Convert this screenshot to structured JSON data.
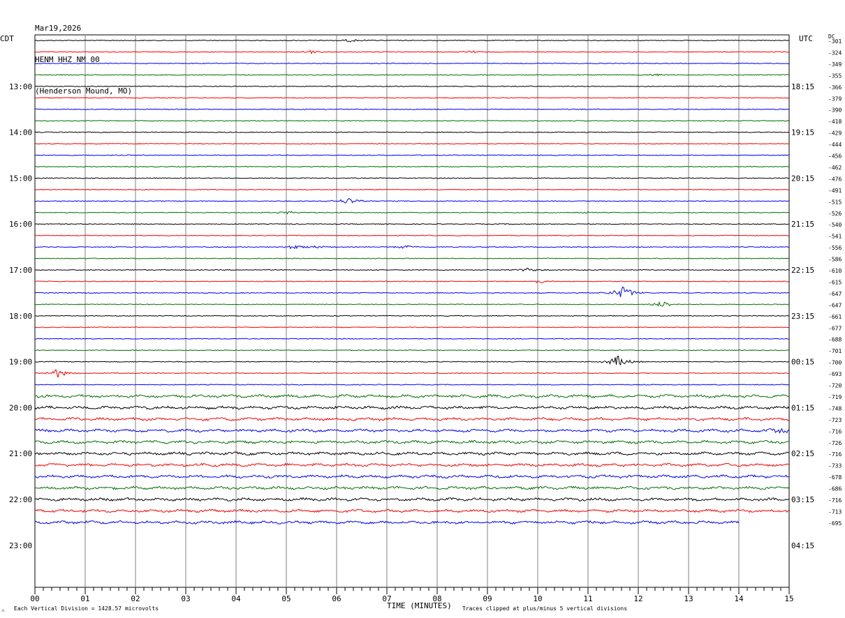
{
  "header": {
    "date": "Mar19,2026",
    "station": "HENM HHZ NM 00",
    "location": "(Henderson Mound, MO)"
  },
  "left_timezone": "CDT",
  "right_timezone": "UTC",
  "dc_label": "DC",
  "footer": {
    "scale_note": "Each Vertical Division = 1428.57 microvolts",
    "clip_note": "Traces clipped at plus/minus 5 vertical divisions",
    "corner_mark": "⚔"
  },
  "colors": {
    "trace_cycle": [
      "#000000",
      "#ff0000",
      "#0000ff",
      "#007000"
    ],
    "grid": "#808080"
  },
  "chart_data": {
    "type": "line",
    "subtype": "helicorder",
    "xlabel": "TIME (MINUTES)",
    "x_ticks": [
      "00",
      "01",
      "02",
      "03",
      "04",
      "05",
      "06",
      "07",
      "08",
      "09",
      "10",
      "11",
      "12",
      "13",
      "14",
      "15"
    ],
    "xlim": [
      0,
      15
    ],
    "rows_per_hour": 4,
    "minutes_per_row": 15,
    "left_hour_labels": [
      "13:00",
      "14:00",
      "15:00",
      "16:00",
      "17:00",
      "18:00",
      "19:00",
      "20:00",
      "21:00",
      "22:00",
      "23:00"
    ],
    "right_hour_labels": [
      "18:15",
      "19:15",
      "20:15",
      "21:15",
      "22:15",
      "23:15",
      "00:15",
      "01:15",
      "02:15",
      "03:15",
      "04:15"
    ],
    "dc_offsets": [
      -301,
      -324,
      -349,
      -355,
      -366,
      -379,
      -390,
      -418,
      -429,
      -444,
      -456,
      -462,
      -476,
      -491,
      -515,
      -526,
      -540,
      -541,
      -556,
      -586,
      -610,
      -615,
      -647,
      -647,
      -661,
      -677,
      -688,
      -701,
      -700,
      -693,
      -720,
      -719,
      -748,
      -723,
      -716,
      -726,
      -716,
      -733,
      -678,
      -686,
      -716,
      -713,
      -695
    ],
    "last_trace_end_minute": 14,
    "events": [
      {
        "row": 0,
        "minute": 6.3,
        "amp": 0.5
      },
      {
        "row": 1,
        "minute": 5.5,
        "amp": 0.6
      },
      {
        "row": 1,
        "minute": 8.7,
        "amp": 0.4
      },
      {
        "row": 3,
        "minute": 12.3,
        "amp": 0.5
      },
      {
        "row": 14,
        "minute": 6.25,
        "amp": 1.2
      },
      {
        "row": 15,
        "minute": 5.0,
        "amp": 0.6
      },
      {
        "row": 15,
        "minute": 11.0,
        "amp": 0.4
      },
      {
        "row": 18,
        "minute": 5.15,
        "amp": 0.8
      },
      {
        "row": 18,
        "minute": 5.6,
        "amp": 0.6
      },
      {
        "row": 18,
        "minute": 7.4,
        "amp": 0.6
      },
      {
        "row": 20,
        "minute": 9.8,
        "amp": 0.7
      },
      {
        "row": 21,
        "minute": 10.1,
        "amp": 0.7
      },
      {
        "row": 22,
        "minute": 11.7,
        "amp": 2.4
      },
      {
        "row": 23,
        "minute": 12.5,
        "amp": 1.2
      },
      {
        "row": 28,
        "minute": 11.6,
        "amp": 2.2
      },
      {
        "row": 29,
        "minute": 0.45,
        "amp": 1.6
      },
      {
        "row": 34,
        "minute": 14.8,
        "amp": 0.9
      }
    ]
  }
}
